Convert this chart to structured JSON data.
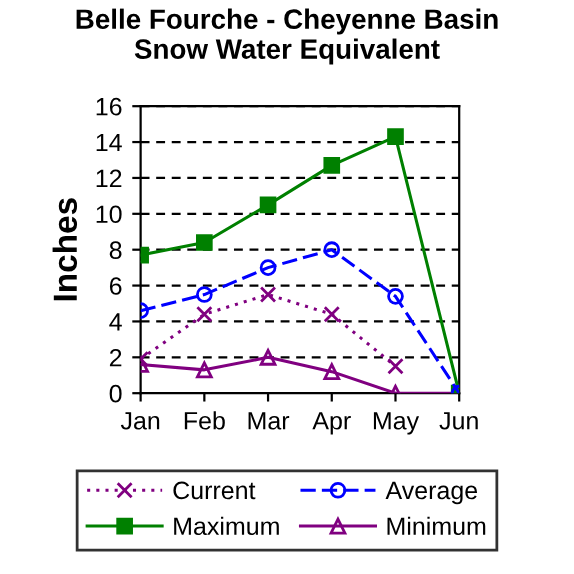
{
  "chart_data": {
    "type": "line",
    "title": "Belle Fourche - Cheyenne Basin\nSnow Water Equivalent",
    "ylabel": "Inches",
    "categories": [
      "Jan",
      "Feb",
      "Mar",
      "Apr",
      "May",
      "Jun"
    ],
    "series": [
      {
        "name": "Current",
        "color": "#800080",
        "marker": "cross",
        "line_style": "dotted",
        "values": [
          1.9,
          4.4,
          5.5,
          4.4,
          1.5,
          null
        ]
      },
      {
        "name": "Average",
        "color": "#0000ff",
        "marker": "circle",
        "line_style": "dashed",
        "values": [
          4.6,
          5.5,
          7.0,
          8.0,
          5.4,
          0
        ]
      },
      {
        "name": "Maximum",
        "color": "#008000",
        "marker": "square",
        "line_style": "solid",
        "values": [
          7.7,
          8.4,
          10.5,
          12.7,
          14.3,
          0
        ]
      },
      {
        "name": "Minimum",
        "color": "#800080",
        "marker": "triangle",
        "line_style": "solid",
        "values": [
          1.6,
          1.3,
          2.0,
          1.2,
          0,
          0
        ]
      }
    ],
    "ylim": [
      0,
      16
    ],
    "yticks": [
      0,
      2,
      4,
      6,
      8,
      10,
      12,
      14,
      16
    ],
    "grid": "y",
    "legend": "bottom"
  }
}
